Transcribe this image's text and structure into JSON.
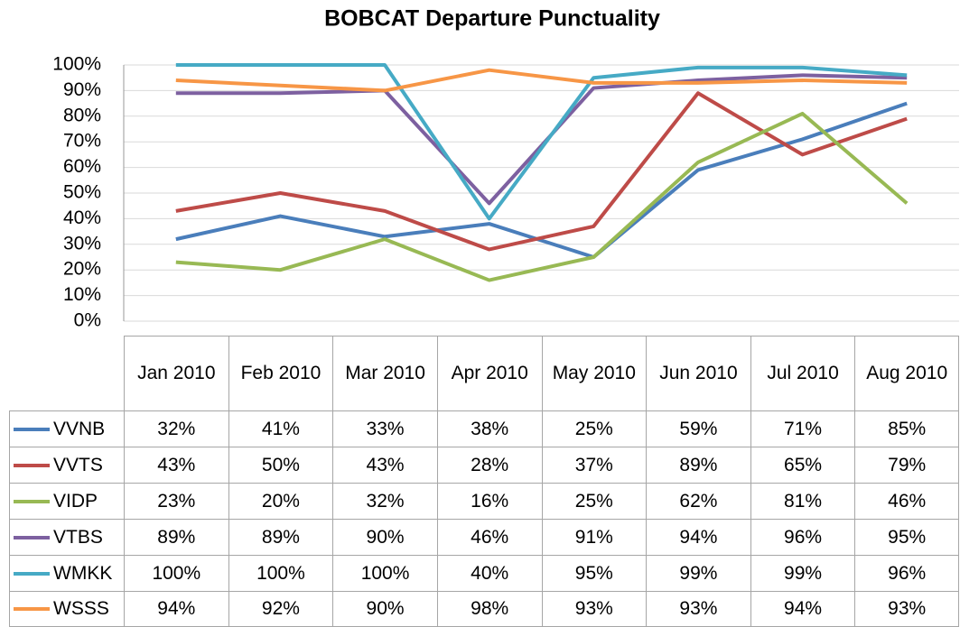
{
  "chart_data": {
    "type": "line",
    "title": "BOBCAT Departure Punctuality",
    "categories": [
      "Jan 2010",
      "Feb 2010",
      "Mar 2010",
      "Apr 2010",
      "May 2010",
      "Jun 2010",
      "Jul 2010",
      "Aug 2010"
    ],
    "series": [
      {
        "name": "VVNB",
        "color": "#4a7ebb",
        "values": [
          32,
          41,
          33,
          38,
          25,
          59,
          71,
          85
        ],
        "value_labels": [
          "32%",
          "41%",
          "33%",
          "38%",
          "25%",
          "59%",
          "71%",
          "85%"
        ]
      },
      {
        "name": "VVTS",
        "color": "#be4b48",
        "values": [
          43,
          50,
          43,
          28,
          37,
          89,
          65,
          79
        ],
        "value_labels": [
          "43%",
          "50%",
          "43%",
          "28%",
          "37%",
          "89%",
          "65%",
          "79%"
        ]
      },
      {
        "name": "VIDP",
        "color": "#98b954",
        "values": [
          23,
          20,
          32,
          16,
          25,
          62,
          81,
          46
        ],
        "value_labels": [
          "23%",
          "20%",
          "32%",
          "16%",
          "25%",
          "62%",
          "81%",
          "46%"
        ]
      },
      {
        "name": "VTBS",
        "color": "#7d60a0",
        "values": [
          89,
          89,
          90,
          46,
          91,
          94,
          96,
          95
        ],
        "value_labels": [
          "89%",
          "89%",
          "90%",
          "46%",
          "91%",
          "94%",
          "96%",
          "95%"
        ]
      },
      {
        "name": "WMKK",
        "color": "#46aac5",
        "values": [
          100,
          100,
          100,
          40,
          95,
          99,
          99,
          96
        ],
        "value_labels": [
          "100%",
          "100%",
          "100%",
          "40%",
          "95%",
          "99%",
          "99%",
          "96%"
        ]
      },
      {
        "name": "WSSS",
        "color": "#f79646",
        "values": [
          94,
          92,
          90,
          98,
          93,
          93,
          94,
          93
        ],
        "value_labels": [
          "94%",
          "92%",
          "90%",
          "98%",
          "93%",
          "93%",
          "94%",
          "93%"
        ]
      }
    ],
    "ylim": [
      0,
      100
    ],
    "yticks": [
      {
        "value": 0,
        "label": "0%"
      },
      {
        "value": 10,
        "label": "10%"
      },
      {
        "value": 20,
        "label": "20%"
      },
      {
        "value": 30,
        "label": "30%"
      },
      {
        "value": 40,
        "label": "40%"
      },
      {
        "value": 50,
        "label": "50%"
      },
      {
        "value": 60,
        "label": "60%"
      },
      {
        "value": 70,
        "label": "70%"
      },
      {
        "value": 80,
        "label": "80%"
      },
      {
        "value": 90,
        "label": "90%"
      },
      {
        "value": 100,
        "label": "100%"
      }
    ],
    "grid": true
  }
}
